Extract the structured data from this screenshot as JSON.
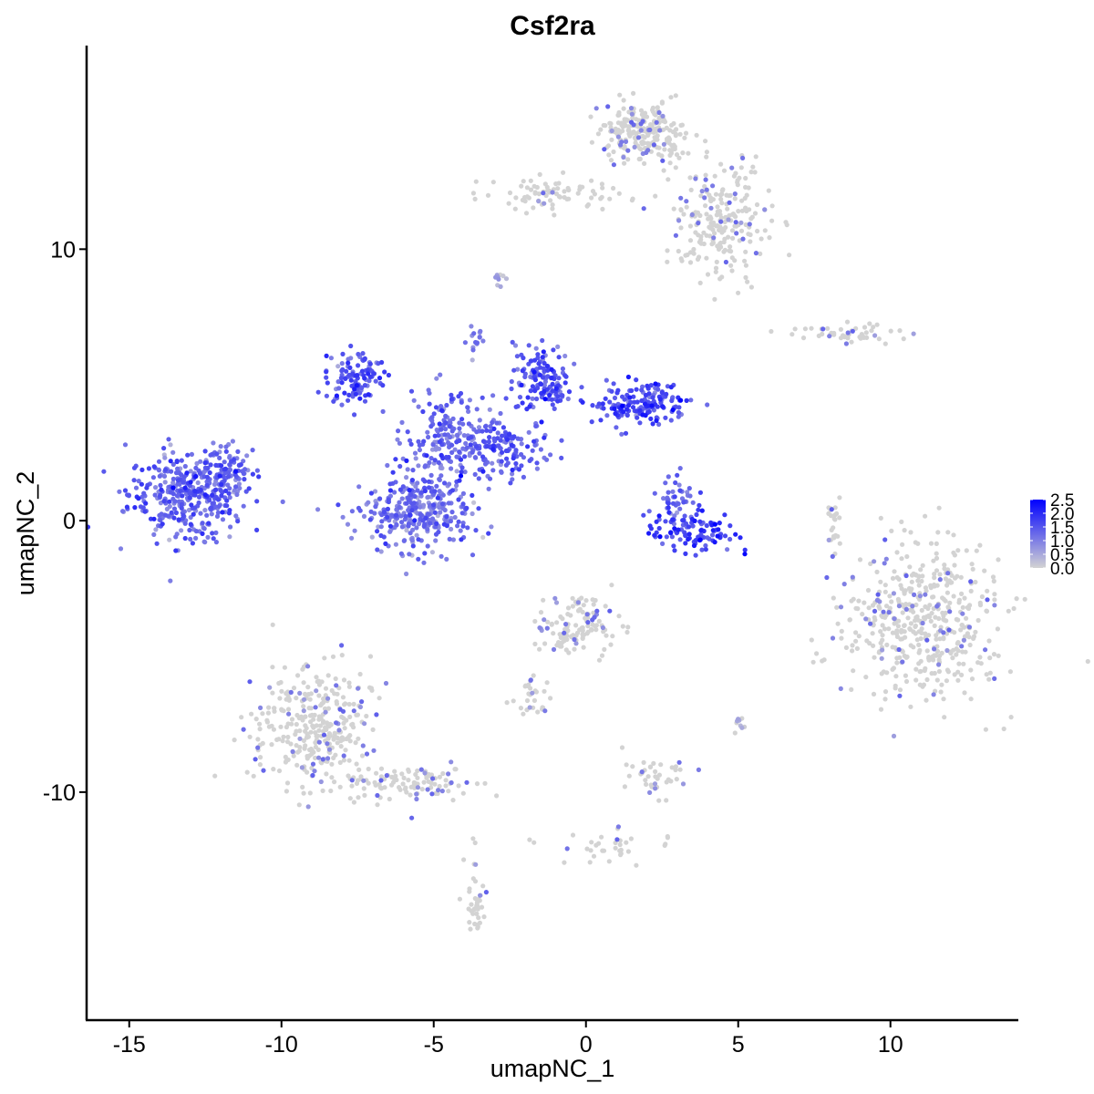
{
  "chart_data": {
    "type": "scatter",
    "title": "Csf2ra",
    "xlabel": "umapNC_1",
    "ylabel": "umapNC_2",
    "xlim": [
      -16.4,
      14.2
    ],
    "ylim": [
      -18.4,
      17.5
    ],
    "x_ticks": [
      -15,
      -10,
      -5,
      0,
      5,
      10
    ],
    "x_tick_labels": [
      "-15",
      "-10",
      "-5",
      "0",
      "5",
      "10"
    ],
    "y_ticks": [
      -10,
      0,
      10
    ],
    "y_tick_labels": [
      "-10",
      "0",
      "10"
    ],
    "grid": false,
    "legend_position": "right",
    "colors": {
      "low": "#d3d3d3",
      "high": "#0000ff"
    },
    "color_scale": {
      "min": 0.0,
      "max": 2.5,
      "ticks": [
        0.0,
        0.5,
        1.0,
        1.5,
        2.0,
        2.5
      ],
      "tick_labels": [
        "0.0",
        "0.5",
        "1.0",
        "1.5",
        "2.0",
        "2.5"
      ]
    },
    "clusters": [
      {
        "center": [
          -13.1,
          1.0
        ],
        "spread": [
          1.2,
          1.0
        ],
        "n": 380,
        "expr_mean": 1.3
      },
      {
        "center": [
          -11.6,
          1.9
        ],
        "spread": [
          0.5,
          0.6
        ],
        "n": 60,
        "expr_mean": 1.2
      },
      {
        "center": [
          -7.6,
          5.3
        ],
        "spread": [
          0.6,
          0.6
        ],
        "n": 110,
        "expr_mean": 1.4
      },
      {
        "center": [
          -5.5,
          0.3
        ],
        "spread": [
          1.1,
          0.9
        ],
        "n": 330,
        "expr_mean": 1.1
      },
      {
        "center": [
          -4.5,
          3.0
        ],
        "spread": [
          0.9,
          1.0
        ],
        "n": 200,
        "expr_mean": 1.2
      },
      {
        "center": [
          -1.4,
          5.2
        ],
        "spread": [
          0.6,
          0.8
        ],
        "n": 140,
        "expr_mean": 1.5
      },
      {
        "center": [
          1.8,
          4.3
        ],
        "spread": [
          1.0,
          0.5
        ],
        "n": 160,
        "expr_mean": 1.6
      },
      {
        "center": [
          -2.6,
          2.6
        ],
        "spread": [
          0.9,
          0.6
        ],
        "n": 120,
        "expr_mean": 1.3
      },
      {
        "center": [
          -3.6,
          6.6
        ],
        "spread": [
          0.2,
          0.4
        ],
        "n": 15,
        "expr_mean": 1.0
      },
      {
        "center": [
          3.5,
          -0.4
        ],
        "spread": [
          0.9,
          0.5
        ],
        "n": 110,
        "expr_mean": 1.7
      },
      {
        "center": [
          3.0,
          0.9
        ],
        "spread": [
          0.3,
          0.5
        ],
        "n": 40,
        "expr_mean": 1.3
      },
      {
        "center": [
          1.9,
          14.3
        ],
        "spread": [
          0.9,
          0.7
        ],
        "n": 230,
        "expr_mean": 0.1
      },
      {
        "center": [
          4.5,
          11.0
        ],
        "spread": [
          1.0,
          1.3
        ],
        "n": 230,
        "expr_mean": 0.1
      },
      {
        "center": [
          -1.0,
          12.0
        ],
        "spread": [
          1.4,
          0.4
        ],
        "n": 80,
        "expr_mean": 0.1
      },
      {
        "center": [
          8.5,
          6.9
        ],
        "spread": [
          1.0,
          0.25
        ],
        "n": 50,
        "expr_mean": 0.05
      },
      {
        "center": [
          11.0,
          -3.8
        ],
        "spread": [
          1.6,
          1.9
        ],
        "n": 480,
        "expr_mean": 0.12
      },
      {
        "center": [
          8.1,
          -0.2
        ],
        "spread": [
          0.15,
          1.0
        ],
        "n": 25,
        "expr_mean": 0.05
      },
      {
        "center": [
          -9.0,
          -7.6
        ],
        "spread": [
          1.2,
          1.5
        ],
        "n": 330,
        "expr_mean": 0.15
      },
      {
        "center": [
          -5.8,
          -9.6
        ],
        "spread": [
          1.3,
          0.5
        ],
        "n": 110,
        "expr_mean": 0.1
      },
      {
        "center": [
          -3.6,
          -14.0
        ],
        "spread": [
          0.25,
          1.2
        ],
        "n": 40,
        "expr_mean": 0.2
      },
      {
        "center": [
          -0.3,
          -3.9
        ],
        "spread": [
          0.9,
          0.7
        ],
        "n": 130,
        "expr_mean": 0.1
      },
      {
        "center": [
          -1.7,
          -6.7
        ],
        "spread": [
          0.4,
          0.5
        ],
        "n": 30,
        "expr_mean": 0.1
      },
      {
        "center": [
          2.3,
          -9.5
        ],
        "spread": [
          0.7,
          0.4
        ],
        "n": 40,
        "expr_mean": 0.25
      },
      {
        "center": [
          1.0,
          -12.0
        ],
        "spread": [
          1.2,
          0.4
        ],
        "n": 35,
        "expr_mean": 0.1
      },
      {
        "center": [
          5.0,
          -7.5
        ],
        "spread": [
          0.15,
          0.2
        ],
        "n": 10,
        "expr_mean": 0.3
      },
      {
        "center": [
          -2.8,
          8.9
        ],
        "spread": [
          0.15,
          0.3
        ],
        "n": 10,
        "expr_mean": 0.4
      }
    ]
  }
}
